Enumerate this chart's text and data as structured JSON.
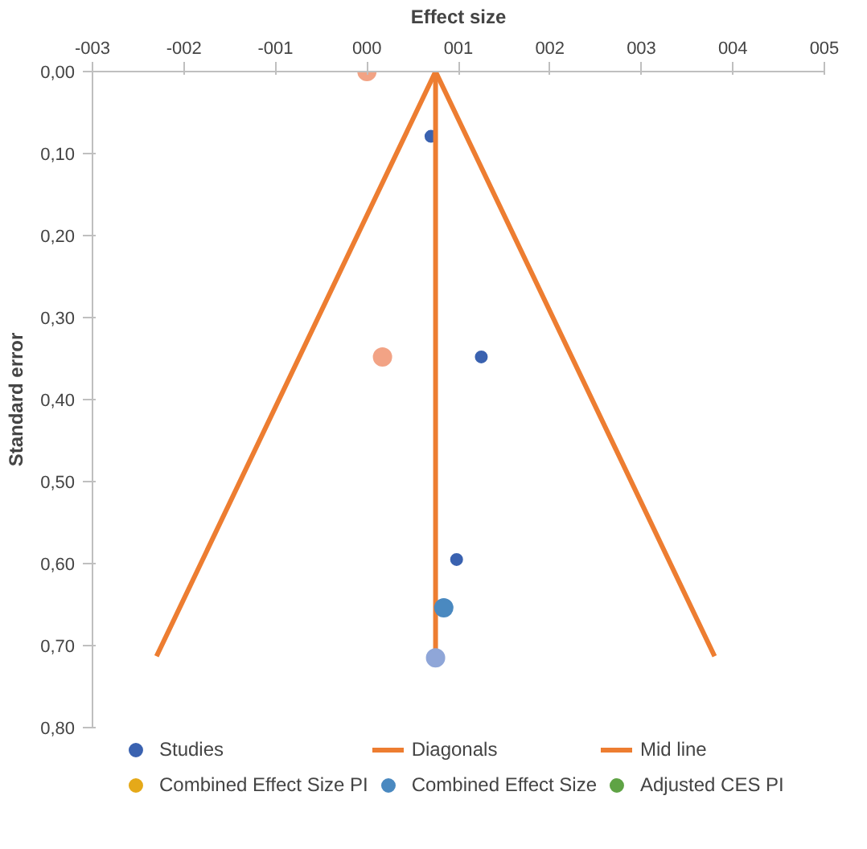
{
  "chart_data": {
    "type": "scatter",
    "xlabel": "Effect size",
    "ylabel": "Standard error",
    "xlim": [
      -3,
      5
    ],
    "ylim": [
      0.8,
      0
    ],
    "xticks": [
      {
        "value": -3,
        "label": "-003"
      },
      {
        "value": -2,
        "label": "-002"
      },
      {
        "value": -1,
        "label": "-001"
      },
      {
        "value": 0,
        "label": "000"
      },
      {
        "value": 1,
        "label": "001"
      },
      {
        "value": 2,
        "label": "002"
      },
      {
        "value": 3,
        "label": "003"
      },
      {
        "value": 4,
        "label": "004"
      },
      {
        "value": 5,
        "label": "005"
      }
    ],
    "yticks": [
      {
        "value": 0,
        "label": "0,00"
      },
      {
        "value": 0.1,
        "label": "0,10"
      },
      {
        "value": 0.2,
        "label": "0,20"
      },
      {
        "value": 0.3,
        "label": "0,30"
      },
      {
        "value": 0.4,
        "label": "0,40"
      },
      {
        "value": 0.5,
        "label": "0,50"
      },
      {
        "value": 0.6,
        "label": "0,60"
      },
      {
        "value": 0.7,
        "label": "0,70"
      },
      {
        "value": 0.8,
        "label": "0,80"
      }
    ],
    "grid": false,
    "legend": "bottom",
    "series": [
      {
        "name": "Studies",
        "color": "#3a62b0",
        "x": [
          0.7,
          1.25,
          0.98
        ],
        "values": [
          0.079,
          0.348,
          0.595
        ]
      },
      {
        "name": "Diagonals",
        "type": "line",
        "color": "#ed7d31",
        "x": [
          -2.3,
          0.75,
          3.8
        ],
        "values": [
          0.713,
          0,
          0.713
        ]
      },
      {
        "name": "Mid line",
        "type": "line",
        "color": "#ed7d31",
        "x": [
          0.75,
          0.75
        ],
        "values": [
          0,
          0.713
        ]
      },
      {
        "name": "Combined Effect Size PI",
        "color": "#e5a919",
        "x": [
          null
        ],
        "values": [
          null
        ]
      },
      {
        "name": "Combined Effect Size",
        "color": "#4a89c0",
        "x": [
          0.84
        ],
        "values": [
          0.654
        ]
      },
      {
        "name": "Adjusted CES PI",
        "color": "#5fa345",
        "x": [
          null
        ],
        "values": [
          null
        ]
      },
      {
        "color": "#f2a385",
        "x": [
          0,
          0.17
        ],
        "values": [
          0,
          0.348
        ]
      },
      {
        "color": "#8fa6d8",
        "x": [
          0.75
        ],
        "values": [
          0.715
        ]
      }
    ]
  }
}
